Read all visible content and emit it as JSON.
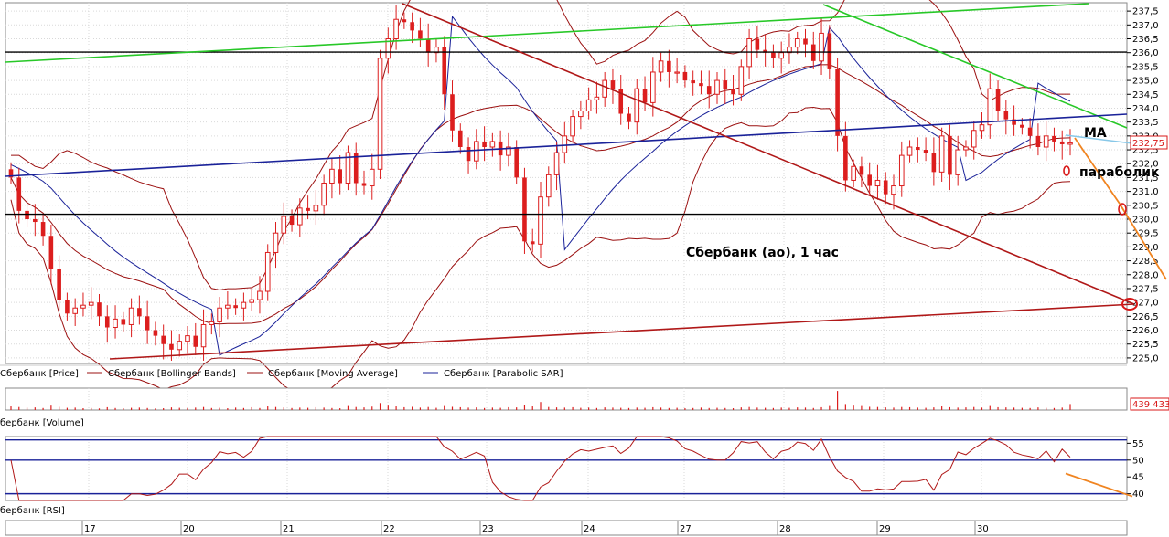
{
  "chart_data": {
    "type": "candlestick",
    "title": "Сбербанк (ао),  1 час",
    "x_tick_labels": [
      "17",
      "20",
      "21",
      "22",
      "23",
      "24",
      "27",
      "28",
      "29",
      "30"
    ],
    "price_panel": {
      "ylim": [
        224.8,
        237.8
      ],
      "y_tick_labels": [
        "237,5",
        "237,0",
        "236,5",
        "236,0",
        "235,5",
        "235,0",
        "234,5",
        "234,0",
        "233,5",
        "233,0",
        "232,5",
        "232,0",
        "231,5",
        "231,0",
        "230,5",
        "230,0",
        "229,5",
        "229,0",
        "228,5",
        "228,0",
        "227,5",
        "227,0",
        "226,5",
        "226,0",
        "225,5",
        "225,0"
      ],
      "last_price_label": "232,75",
      "legend": [
        "Сбербанк [Price]",
        "Сбербанк [Bollinger Bands]",
        "Сбербанк [Moving Average]",
        "Сбербанк [Parabolic SAR]"
      ],
      "close_estimates": [
        231.5,
        230.3,
        230.0,
        229.9,
        229.4,
        228.2,
        227.1,
        226.6,
        226.8,
        226.9,
        227.0,
        226.5,
        226.1,
        226.4,
        226.2,
        226.8,
        226.5,
        226.0,
        225.8,
        225.5,
        225.3,
        225.6,
        225.8,
        225.4,
        226.2,
        226.3,
        226.8,
        226.9,
        226.8,
        227.0,
        227.1,
        227.4,
        228.8,
        229.5,
        230.1,
        229.8,
        230.4,
        230.3,
        230.5,
        231.3,
        231.8,
        231.3,
        232.4,
        231.3,
        231.2,
        231.8,
        235.8,
        236.5,
        237.2,
        237.1,
        236.8,
        236.5,
        236.0,
        236.2,
        234.5,
        233.2,
        232.6,
        232.1,
        232.8,
        232.6,
        232.8,
        232.3,
        232.6,
        231.5,
        229.2,
        229.1,
        230.8,
        231.6,
        232.4,
        233.0,
        233.7,
        233.9,
        234.3,
        234.4,
        235.0,
        234.7,
        233.8,
        233.5,
        234.7,
        234.2,
        235.3,
        235.7,
        235.3,
        235.3,
        235.0,
        234.9,
        234.8,
        234.5,
        235.0,
        234.7,
        234.5,
        235.5,
        236.5,
        236.1,
        236.0,
        235.8,
        236.0,
        236.2,
        236.5,
        236.3,
        235.7,
        236.7,
        235.4,
        233.0,
        231.4,
        231.9,
        231.6,
        231.2,
        231.4,
        230.9,
        231.2,
        232.3,
        232.6,
        232.5,
        232.4,
        231.7,
        233.0,
        231.6,
        232.5,
        232.6,
        233.2,
        233.4,
        234.7,
        233.9,
        233.6,
        233.4,
        233.3,
        233.0,
        232.6,
        233.0,
        232.8,
        232.7,
        232.75
      ]
    },
    "volume_panel": {
      "label": "бербанк [Volume]",
      "last_value_label": "439 433",
      "volume_estimates": [
        0.18,
        0.15,
        0.12,
        0.13,
        0.1,
        0.22,
        0.16,
        0.11,
        0.12,
        0.09,
        0.1,
        0.08,
        0.14,
        0.1,
        0.09,
        0.11,
        0.12,
        0.1,
        0.08,
        0.09,
        0.13,
        0.11,
        0.1,
        0.12,
        0.15,
        0.1,
        0.11,
        0.09,
        0.12,
        0.1,
        0.14,
        0.1,
        0.18,
        0.15,
        0.13,
        0.1,
        0.12,
        0.11,
        0.14,
        0.12,
        0.1,
        0.09,
        0.2,
        0.15,
        0.13,
        0.17,
        0.35,
        0.22,
        0.18,
        0.14,
        0.16,
        0.12,
        0.15,
        0.11,
        0.2,
        0.16,
        0.14,
        0.12,
        0.13,
        0.1,
        0.12,
        0.11,
        0.14,
        0.13,
        0.25,
        0.18,
        0.4,
        0.15,
        0.13,
        0.12,
        0.14,
        0.11,
        0.12,
        0.1,
        0.13,
        0.12,
        0.11,
        0.1,
        0.12,
        0.11,
        0.14,
        0.12,
        0.1,
        0.11,
        0.09,
        0.1,
        0.12,
        0.1,
        0.11,
        0.1,
        0.09,
        0.13,
        0.15,
        0.12,
        0.11,
        0.1,
        0.12,
        0.11,
        0.13,
        0.12,
        0.1,
        0.14,
        0.2,
        0.95,
        0.3,
        0.22,
        0.2,
        0.16,
        0.15,
        0.13,
        0.12,
        0.15,
        0.14,
        0.12,
        0.11,
        0.13,
        0.18,
        0.14,
        0.12,
        0.13,
        0.15,
        0.12,
        0.2,
        0.14,
        0.13,
        0.12,
        0.11,
        0.1,
        0.13,
        0.11,
        0.1,
        0.12,
        0.3
      ]
    },
    "rsi_panel": {
      "label": "бербанк [RSI]",
      "ylim": [
        38,
        57
      ],
      "y_tick_labels": [
        "55",
        "50",
        "45",
        "40"
      ],
      "levels": [
        40,
        50,
        56
      ]
    },
    "annotations": [
      "MA",
      "параболик"
    ],
    "colors": {
      "candle": "#dc1e1e",
      "bollinger": "#9b1010",
      "moving_average": "#9b1010",
      "parabolic_sar": "#1a2299",
      "trend_green": "#28c828",
      "trend_blue": "#1a2299",
      "trend_red": "#b01818",
      "level_black": "#000000",
      "ma_projection": "#88c8e8",
      "forecast_orange": "#f08420",
      "rsi_line": "#b01818",
      "rsi_levels": "#1a2299",
      "label_box": "#d81818"
    }
  }
}
